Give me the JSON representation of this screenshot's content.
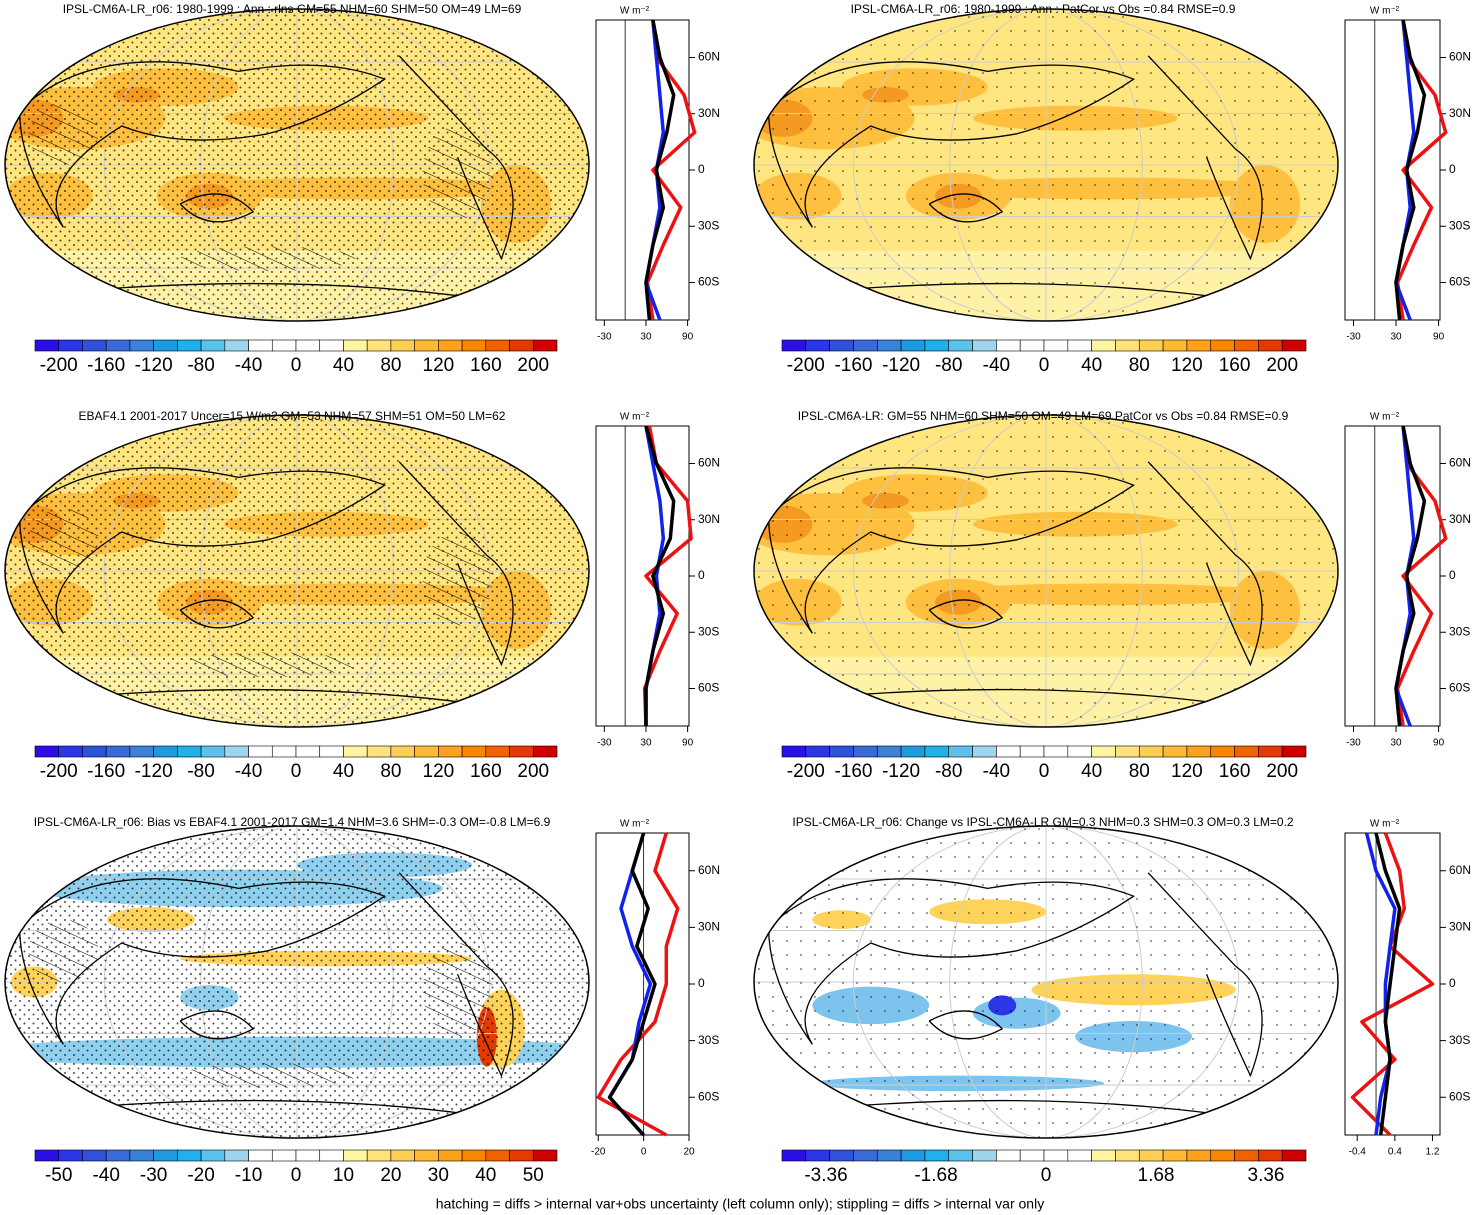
{
  "panels": [
    {
      "title": "IPSL-CM6A-LR_r06: 1980-1999 : Ann : rlns GM=55 NHM=60 SHM=50 OM=49 LM=69",
      "colorbar": {
        "labels": [
          -200,
          -160,
          -120,
          -80,
          -40,
          0,
          40,
          80,
          120,
          160,
          200
        ]
      },
      "zonal": {
        "unit": "W m⁻²",
        "xlim": [
          -42,
          92
        ],
        "xticks": [
          -30,
          30,
          90
        ],
        "ylim": [
          -80,
          80
        ],
        "yticks": [
          {
            "value": 60,
            "label": "60N"
          },
          {
            "value": 30,
            "label": "30N"
          },
          0,
          {
            "value": -30,
            "label": "30S"
          },
          {
            "value": -60,
            "label": "60S"
          }
        ],
        "lat": [
          -80,
          -60,
          -40,
          -20,
          0,
          20,
          40,
          60,
          80
        ],
        "series": [
          {
            "color": "#ee1111",
            "values": [
              40,
              32,
              55,
              80,
              40,
              100,
              85,
              45,
              40
            ]
          },
          {
            "color": "#1122ee",
            "values": [
              50,
              30,
              40,
              50,
              45,
              55,
              50,
              45,
              40
            ]
          },
          {
            "color": "#000000",
            "values": [
              35,
              30,
              40,
              55,
              45,
              60,
              70,
              50,
              40
            ]
          }
        ]
      }
    },
    {
      "title": "IPSL-CM6A-LR_r06: 1980-1999 : Ann : PatCor vs Obs =0.84 RMSE=0.9",
      "colorbar": {
        "labels": [
          -200,
          -160,
          -120,
          -80,
          -40,
          0,
          40,
          80,
          120,
          160,
          200
        ]
      },
      "zonal": {
        "unit": "W m⁻²",
        "xlim": [
          -42,
          92
        ],
        "xticks": [
          -30,
          30,
          90
        ],
        "ylim": [
          -80,
          80
        ],
        "yticks": [
          {
            "value": 60,
            "label": "60N"
          },
          {
            "value": 30,
            "label": "30N"
          },
          0,
          {
            "value": -30,
            "label": "30S"
          },
          {
            "value": -60,
            "label": "60S"
          }
        ],
        "lat": [
          -80,
          -60,
          -40,
          -20,
          0,
          20,
          40,
          60,
          80
        ],
        "series": [
          {
            "color": "#ee1111",
            "values": [
              40,
              32,
              55,
              80,
              40,
              100,
              85,
              45,
              40
            ]
          },
          {
            "color": "#1122ee",
            "values": [
              50,
              30,
              40,
              50,
              45,
              55,
              50,
              45,
              40
            ]
          },
          {
            "color": "#000000",
            "values": [
              35,
              30,
              40,
              55,
              45,
              60,
              70,
              50,
              40
            ]
          }
        ]
      }
    },
    {
      "title": "EBAF4.1 2001-2017 Uncer=15 W/m2 GM=53 NHM=57 SHM=51 OM=50 LM=62",
      "colorbar": {
        "labels": [
          -200,
          -160,
          -120,
          -80,
          -40,
          0,
          40,
          80,
          120,
          160,
          200
        ]
      },
      "zonal": {
        "unit": "W m⁻²",
        "xlim": [
          -42,
          92
        ],
        "xticks": [
          -30,
          30,
          90
        ],
        "ylim": [
          -80,
          80
        ],
        "yticks": [
          {
            "value": 60,
            "label": "60N"
          },
          {
            "value": 30,
            "label": "30N"
          },
          0,
          {
            "value": -30,
            "label": "30S"
          },
          {
            "value": -60,
            "label": "60S"
          }
        ],
        "lat": [
          -80,
          -60,
          -40,
          -20,
          0,
          20,
          40,
          60,
          80
        ],
        "series": [
          {
            "color": "#ee1111",
            "values": [
              30,
              28,
              50,
              75,
              30,
              95,
              90,
              45,
              35
            ]
          },
          {
            "color": "#1122ee",
            "values": [
              30,
              30,
              40,
              50,
              45,
              55,
              50,
              40,
              30
            ]
          },
          {
            "color": "#000000",
            "values": [
              30,
              30,
              40,
              55,
              40,
              65,
              70,
              45,
              30
            ]
          }
        ]
      }
    },
    {
      "title": "IPSL-CM6A-LR: GM=55 NHM=60 SHM=50 OM=49 LM=69 PatCor vs Obs =0.84 RMSE=0.9",
      "colorbar": {
        "labels": [
          -200,
          -160,
          -120,
          -80,
          -40,
          0,
          40,
          80,
          120,
          160,
          200
        ]
      },
      "zonal": {
        "unit": "W m⁻²",
        "xlim": [
          -42,
          92
        ],
        "xticks": [
          -30,
          30,
          90
        ],
        "ylim": [
          -80,
          80
        ],
        "yticks": [
          {
            "value": 60,
            "label": "60N"
          },
          {
            "value": 30,
            "label": "30N"
          },
          0,
          {
            "value": -30,
            "label": "30S"
          },
          {
            "value": -60,
            "label": "60S"
          }
        ],
        "lat": [
          -80,
          -60,
          -40,
          -20,
          0,
          20,
          40,
          60,
          80
        ],
        "series": [
          {
            "color": "#ee1111",
            "values": [
              40,
              32,
              55,
              80,
              40,
              100,
              85,
              45,
              40
            ]
          },
          {
            "color": "#1122ee",
            "values": [
              50,
              30,
              40,
              50,
              45,
              55,
              50,
              45,
              40
            ]
          },
          {
            "color": "#000000",
            "values": [
              35,
              30,
              40,
              55,
              45,
              60,
              70,
              50,
              40
            ]
          }
        ]
      }
    },
    {
      "title": "IPSL-CM6A-LR_r06: Bias vs EBAF4.1 2001-2017 GM=1.4 NHM=3.6 SHM=-0.3 OM=-0.8 LM=6.9",
      "colorbar": {
        "labels": [
          -50,
          -40,
          -30,
          -20,
          -10,
          0,
          10,
          20,
          30,
          40,
          50
        ]
      },
      "zonal": {
        "unit": "W m⁻²",
        "xlim": [
          -21,
          20
        ],
        "xticks": [
          -20,
          0,
          20
        ],
        "ylim": [
          -80,
          80
        ],
        "yticks": [
          {
            "value": 60,
            "label": "60N"
          },
          {
            "value": 30,
            "label": "30N"
          },
          0,
          {
            "value": -30,
            "label": "30S"
          },
          {
            "value": -60,
            "label": "60S"
          }
        ],
        "lat": [
          -80,
          -60,
          -40,
          -20,
          0,
          20,
          40,
          60,
          80
        ],
        "series": [
          {
            "color": "#ee1111",
            "values": [
              10,
              -20,
              -10,
              5,
              10,
              10,
              15,
              5,
              10
            ]
          },
          {
            "color": "#1122ee",
            "values": [
              0,
              -15,
              -5,
              -2,
              3,
              -5,
              -10,
              -5,
              0
            ]
          },
          {
            "color": "#000000",
            "values": [
              0,
              -15,
              -5,
              0,
              5,
              -3,
              2,
              -5,
              0
            ]
          }
        ]
      }
    },
    {
      "title": "IPSL-CM6A-LR_r06: Change vs IPSL-CM6A-LR GM=0.3 NHM=0.3 SHM=0.3 OM=0.3 LM=0.2",
      "colorbar": {
        "labels": [
          -3.36,
          -1.68,
          0,
          1.68,
          3.36
        ]
      },
      "zonal": {
        "unit": "W m⁻²",
        "xlim": [
          -0.66,
          1.36
        ],
        "xticks": [
          -0.4,
          0.4,
          1.2
        ],
        "ylim": [
          -80,
          80
        ],
        "yticks": [
          {
            "value": 60,
            "label": "60N"
          },
          {
            "value": 30,
            "label": "30N"
          },
          0,
          {
            "value": -30,
            "label": "30S"
          },
          {
            "value": -60,
            "label": "60S"
          }
        ],
        "lat": [
          -80,
          -60,
          -40,
          -20,
          0,
          20,
          40,
          60,
          80
        ],
        "series": [
          {
            "color": "#ee1111",
            "values": [
              0.3,
              -0.5,
              0.4,
              -0.3,
              1.2,
              0.3,
              0.6,
              0.5,
              0.2
            ]
          },
          {
            "color": "#1122ee",
            "values": [
              0,
              0.1,
              0.3,
              0.2,
              0.2,
              0.3,
              0.4,
              0,
              -0.2
            ]
          },
          {
            "color": "#000000",
            "values": [
              0.1,
              0.2,
              0.3,
              0.2,
              0.3,
              0.4,
              0.5,
              0.2,
              0
            ]
          }
        ]
      }
    }
  ],
  "colors": [
    "#2a0fe6",
    "#2b36e6",
    "#2f52d9",
    "#3a6ad8",
    "#3a82d6",
    "#1f9ae0",
    "#20b0ea",
    "#5cc2ec",
    "#9ed4ee",
    "#ffffff",
    "#ffffff",
    "#ffffff",
    "#ffffff",
    "#fff4a0",
    "#ffe27a",
    "#ffcf55",
    "#ffb934",
    "#ffa11c",
    "#f98600",
    "#f06200",
    "#e43a00",
    "#d00000"
  ],
  "footer": "hatching = diffs > internal var+obs uncertainty (left column only); stippling = diffs > internal var only"
}
